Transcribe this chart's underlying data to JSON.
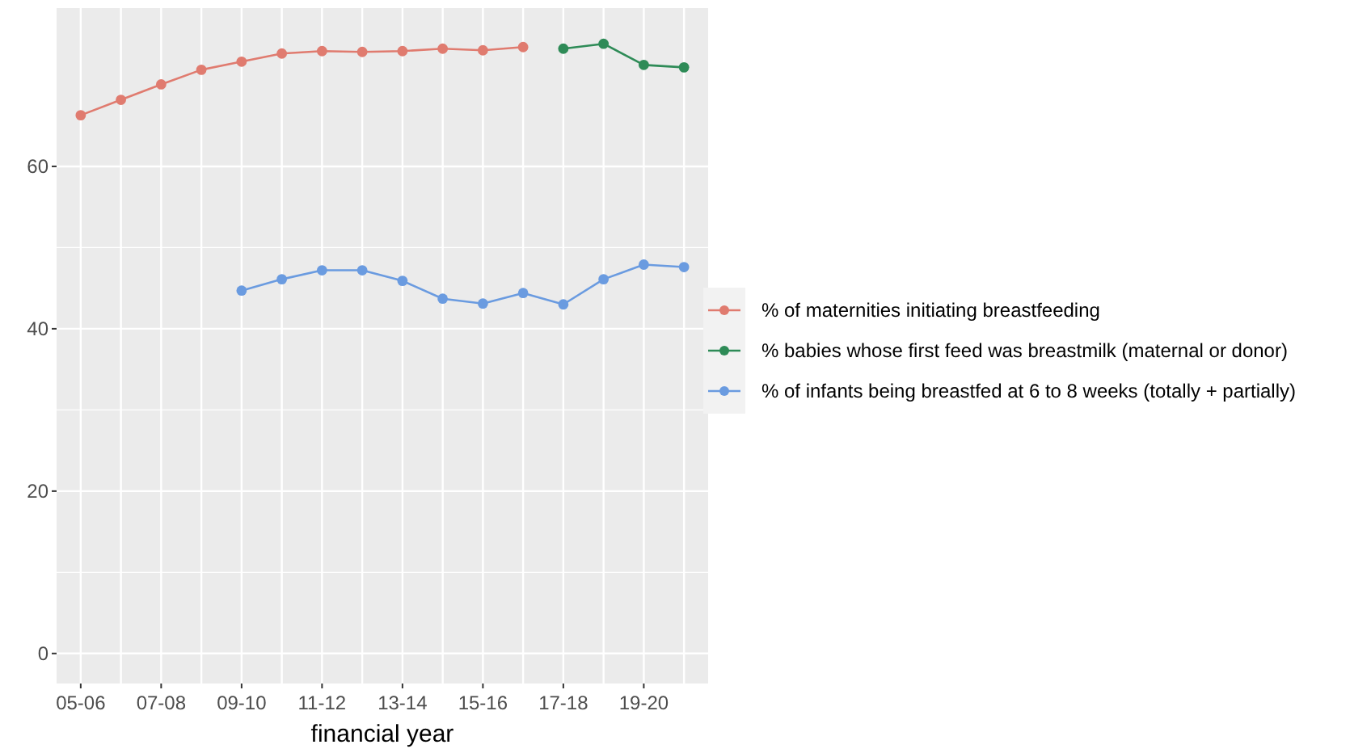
{
  "chart_data": {
    "type": "line",
    "xlabel": "financial year",
    "categories": [
      "05-06",
      null,
      "07-08",
      null,
      "09-10",
      null,
      "11-12",
      null,
      "13-14",
      null,
      "15-16",
      null,
      "17-18",
      null,
      "19-20",
      null
    ],
    "ylim": [
      -3.7,
      79.5
    ],
    "yticks": [
      0,
      20,
      40,
      60
    ],
    "grid": true,
    "legend": "right",
    "marker": "circle",
    "line_style": "solid",
    "series": [
      {
        "name": "% of maternities initiating breastfeeding",
        "color": "#e07b6f",
        "values": [
          66.3,
          68.2,
          70.1,
          71.9,
          72.9,
          73.9,
          74.2,
          74.1,
          74.2,
          74.5,
          74.3,
          74.7,
          null,
          null,
          null,
          null
        ]
      },
      {
        "name": "% babies whose first feed was breastmilk (maternal or donor)",
        "color": "#2e8b57",
        "values": [
          null,
          null,
          null,
          null,
          null,
          null,
          null,
          null,
          null,
          null,
          null,
          null,
          74.5,
          75.1,
          72.5,
          72.2
        ]
      },
      {
        "name": "% of infants being breastfed at 6 to 8 weeks (totally + partially)",
        "color": "#6a9be0",
        "values": [
          null,
          null,
          null,
          null,
          44.7,
          46.1,
          47.2,
          47.2,
          45.9,
          43.7,
          43.1,
          44.4,
          43.0,
          46.1,
          47.9,
          47.6
        ]
      }
    ]
  }
}
